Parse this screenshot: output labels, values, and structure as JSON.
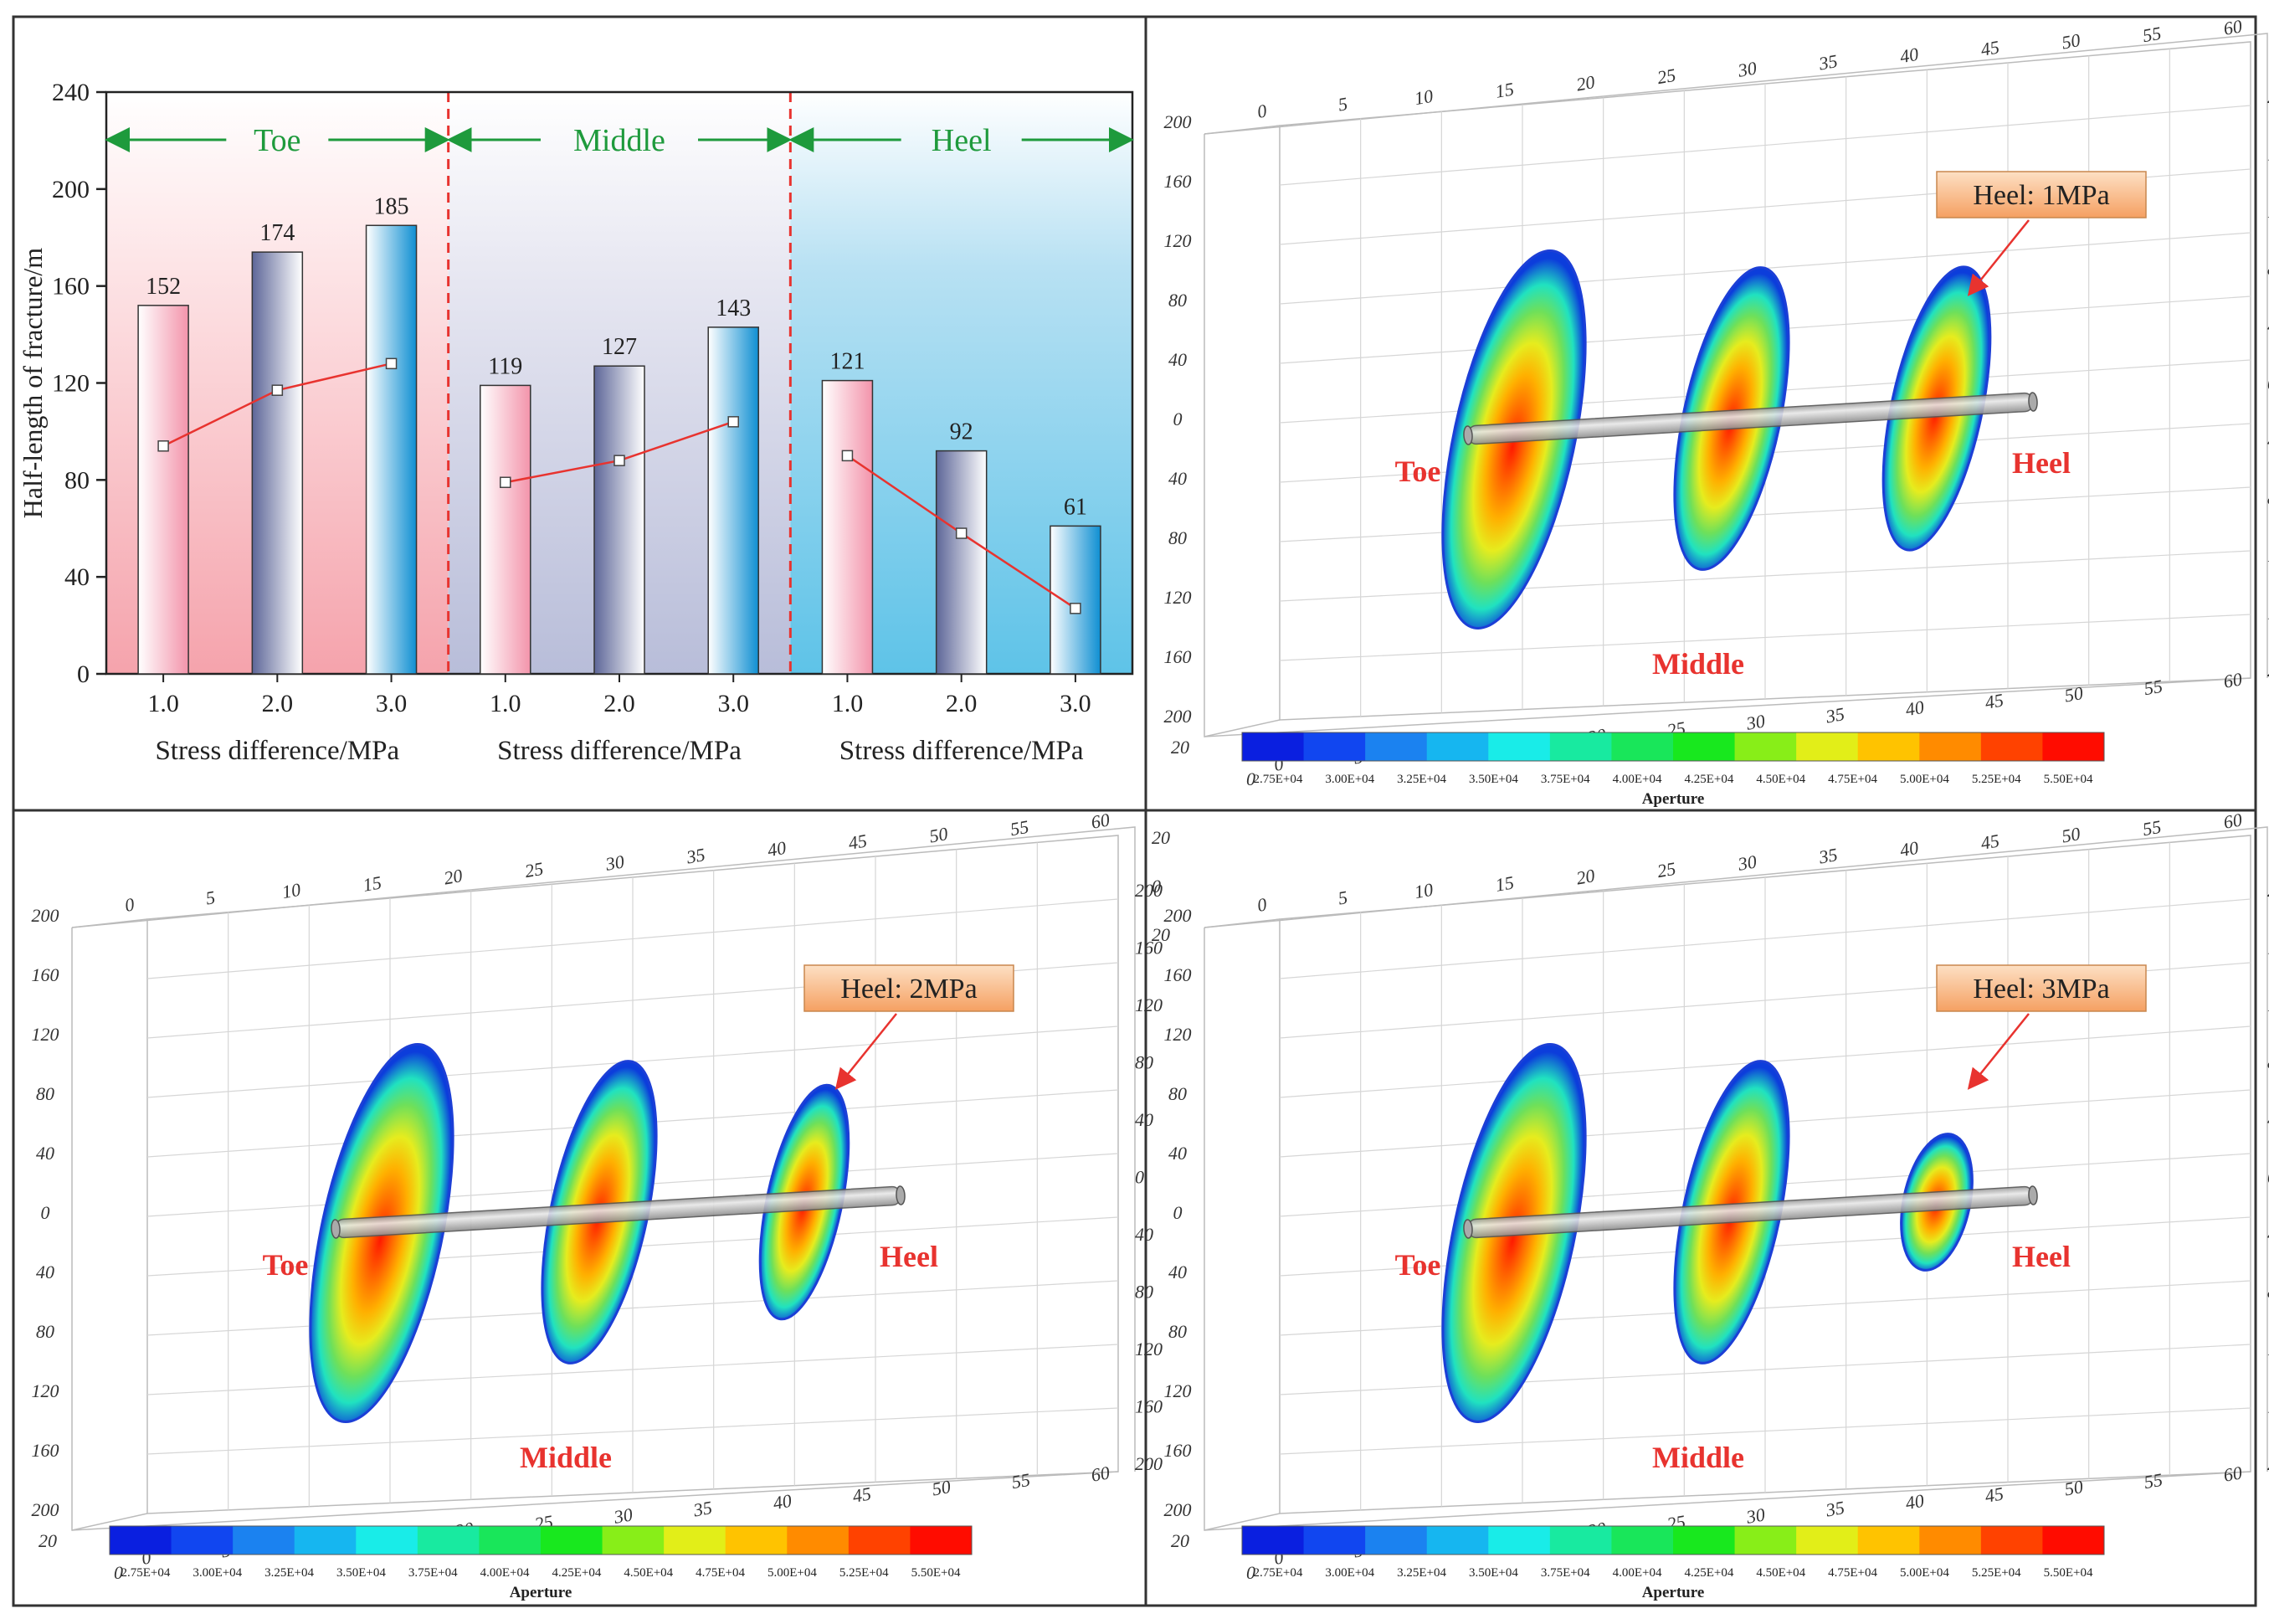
{
  "chart_data": [
    {
      "type": "bar",
      "ylabel": "Half-length of fracture/m",
      "ylim": [
        0,
        240
      ],
      "yticks": [
        0,
        40,
        80,
        120,
        160,
        200,
        240
      ],
      "groups": [
        {
          "name": "Toe",
          "categories": [
            "1.0",
            "2.0",
            "3.0"
          ],
          "values": [
            152,
            174,
            185
          ],
          "line_values": [
            94,
            117,
            128
          ],
          "xlabel": "Stress difference/MPa"
        },
        {
          "name": "Middle",
          "categories": [
            "1.0",
            "2.0",
            "3.0"
          ],
          "values": [
            119,
            127,
            143
          ],
          "line_values": [
            79,
            88,
            104
          ],
          "xlabel": "Stress difference/MPa"
        },
        {
          "name": "Heel",
          "categories": [
            "1.0",
            "2.0",
            "3.0"
          ],
          "values": [
            121,
            92,
            61
          ],
          "line_values": [
            90,
            58,
            27
          ],
          "xlabel": "Stress difference/MPa"
        }
      ],
      "colors": {
        "group_label": "#1e9a3c",
        "line": "#e8332f",
        "bar_a": "#f5a0b4",
        "bar_b": "#7d86b6",
        "bar_c": "#1c9ad6"
      }
    },
    {
      "type": "3d-contour",
      "title": "Heel: 1MPa",
      "labels": {
        "toe": "Toe",
        "middle": "Middle",
        "heel": "Heel"
      },
      "colorbar": {
        "title": "Aperture",
        "ticks": [
          "2.75E+04",
          "3.00E+04",
          "3.25E+04",
          "3.50E+04",
          "3.75E+04",
          "4.00E+04",
          "4.25E+04",
          "4.50E+04",
          "4.75E+04",
          "5.00E+04",
          "5.25E+04",
          "5.50E+04"
        ]
      },
      "x_ticks": [
        "0",
        "5",
        "10",
        "15",
        "20",
        "25",
        "30",
        "35",
        "40",
        "45",
        "50",
        "55",
        "60"
      ],
      "y_ticks": [
        "200",
        "160",
        "120",
        "80",
        "40",
        "0",
        "40",
        "80",
        "120",
        "160",
        "200"
      ],
      "z_ticks": [
        "20",
        "0",
        "20"
      ],
      "fracture_scale": {
        "toe": 1.0,
        "middle": 0.8,
        "heel": 0.75
      }
    },
    {
      "type": "3d-contour",
      "title": "Heel: 2MPa",
      "labels": {
        "toe": "Toe",
        "middle": "Middle",
        "heel": "Heel"
      },
      "colorbar": {
        "title": "Aperture",
        "ticks": [
          "2.75E+04",
          "3.00E+04",
          "3.25E+04",
          "3.50E+04",
          "3.75E+04",
          "4.00E+04",
          "4.25E+04",
          "4.50E+04",
          "4.75E+04",
          "5.00E+04",
          "5.25E+04",
          "5.50E+04"
        ]
      },
      "x_ticks": [
        "0",
        "5",
        "10",
        "15",
        "20",
        "25",
        "30",
        "35",
        "40",
        "45",
        "50",
        "55",
        "60"
      ],
      "y_ticks": [
        "200",
        "160",
        "120",
        "80",
        "40",
        "0",
        "40",
        "80",
        "120",
        "160",
        "200"
      ],
      "z_ticks": [
        "20",
        "0",
        "20"
      ],
      "fracture_scale": {
        "toe": 1.0,
        "middle": 0.8,
        "heel": 0.62
      }
    },
    {
      "type": "3d-contour",
      "title": "Heel: 3MPa",
      "labels": {
        "toe": "Toe",
        "middle": "Middle",
        "heel": "Heel"
      },
      "colorbar": {
        "title": "Aperture",
        "ticks": [
          "2.75E+04",
          "3.00E+04",
          "3.25E+04",
          "3.50E+04",
          "3.75E+04",
          "4.00E+04",
          "4.25E+04",
          "4.50E+04",
          "4.75E+04",
          "5.00E+04",
          "5.25E+04",
          "5.50E+04"
        ]
      },
      "x_ticks": [
        "0",
        "5",
        "10",
        "15",
        "20",
        "25",
        "30",
        "35",
        "40",
        "45",
        "50",
        "55",
        "60"
      ],
      "y_ticks": [
        "200",
        "160",
        "120",
        "80",
        "40",
        "0",
        "40",
        "80",
        "120",
        "160",
        "200"
      ],
      "z_ticks": [
        "20",
        "0",
        "20"
      ],
      "fracture_scale": {
        "toe": 1.0,
        "middle": 0.8,
        "heel": 0.36
      }
    }
  ]
}
